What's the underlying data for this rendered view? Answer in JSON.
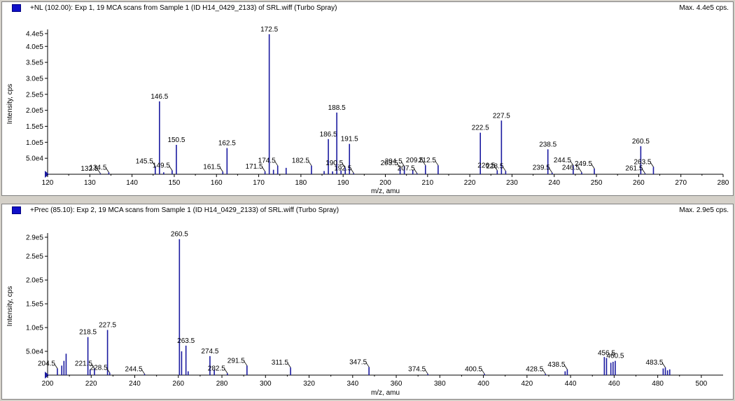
{
  "colors": {
    "series": "#1a1aa0",
    "axis": "#000000",
    "panel_bg": "#ffffff",
    "window_bg": "#d4d0c8",
    "marker": "#1010c8"
  },
  "chart_data": [
    {
      "type": "bar",
      "title": "+NL (102.00): Exp 1, 19 MCA scans from Sample 1 (ID H14_0429_2133) of SRL.wiff (Turbo Spray)",
      "max_label": "Max. 4.4e5 cps.",
      "xlabel": "m/z, amu",
      "ylabel": "Intensity, cps",
      "xlim": [
        120,
        280
      ],
      "ylim": [
        0,
        440000
      ],
      "xticks": [
        120,
        130,
        140,
        150,
        160,
        170,
        180,
        190,
        200,
        210,
        220,
        230,
        240,
        250,
        260,
        270,
        280
      ],
      "yticks": [
        50000,
        100000,
        150000,
        200000,
        250000,
        300000,
        350000,
        400000,
        440000
      ],
      "ytick_labels": [
        "5.0e4",
        "1.0e5",
        "1.5e5",
        "2.0e5",
        "2.5e5",
        "3.0e5",
        "3.5e5",
        "4.0e5",
        "4.4e5"
      ],
      "peaks": [
        {
          "x": 132.5,
          "y": 2500,
          "label": "132.5"
        },
        {
          "x": 134.5,
          "y": 6000,
          "label": "134.5"
        },
        {
          "x": 145.5,
          "y": 25000,
          "label": "145.5"
        },
        {
          "x": 146.5,
          "y": 228000,
          "label": "146.5"
        },
        {
          "x": 147.5,
          "y": 6000
        },
        {
          "x": 149.5,
          "y": 12000,
          "label": "149.5"
        },
        {
          "x": 150.5,
          "y": 92000,
          "label": "150.5"
        },
        {
          "x": 161.5,
          "y": 8000,
          "label": "161.5"
        },
        {
          "x": 162.5,
          "y": 82000,
          "label": "162.5"
        },
        {
          "x": 171.5,
          "y": 9000,
          "label": "171.5"
        },
        {
          "x": 172.5,
          "y": 438000,
          "label": "172.5"
        },
        {
          "x": 173.5,
          "y": 14000
        },
        {
          "x": 174.5,
          "y": 27000,
          "label": "174.5"
        },
        {
          "x": 176.5,
          "y": 20000
        },
        {
          "x": 182.5,
          "y": 27000,
          "label": "182.5"
        },
        {
          "x": 185.5,
          "y": 10000
        },
        {
          "x": 186.5,
          "y": 110000,
          "label": "186.5"
        },
        {
          "x": 187.5,
          "y": 9000
        },
        {
          "x": 188.5,
          "y": 193000,
          "label": "188.5"
        },
        {
          "x": 189.5,
          "y": 12000
        },
        {
          "x": 190.5,
          "y": 20000,
          "label": "190.5"
        },
        {
          "x": 191.5,
          "y": 95000,
          "label": "191.5"
        },
        {
          "x": 192.5,
          "y": 3500,
          "label": "192.5"
        },
        {
          "x": 203.5,
          "y": 20000,
          "label": "203.5"
        },
        {
          "x": 204.5,
          "y": 25000,
          "label": "204.5"
        },
        {
          "x": 206.5,
          "y": 12000
        },
        {
          "x": 207.5,
          "y": 3000,
          "label": "207.5"
        },
        {
          "x": 209.5,
          "y": 28000,
          "label": "209.5"
        },
        {
          "x": 212.5,
          "y": 28000,
          "label": "212.5"
        },
        {
          "x": 222.5,
          "y": 130000,
          "label": "222.5"
        },
        {
          "x": 226.5,
          "y": 12000,
          "label": "226.5"
        },
        {
          "x": 227.5,
          "y": 168000,
          "label": "227.5"
        },
        {
          "x": 228.5,
          "y": 10000,
          "label": "228.5"
        },
        {
          "x": 238.5,
          "y": 78000,
          "label": "238.5"
        },
        {
          "x": 239.5,
          "y": 5000,
          "label": "239.5"
        },
        {
          "x": 244.5,
          "y": 28000,
          "label": "244.5"
        },
        {
          "x": 246.5,
          "y": 6000,
          "label": "246.5"
        },
        {
          "x": 249.5,
          "y": 18000,
          "label": "249.5"
        },
        {
          "x": 260.5,
          "y": 88000,
          "label": "260.5"
        },
        {
          "x": 261.5,
          "y": 3000,
          "label": "261.5"
        },
        {
          "x": 263.5,
          "y": 23000,
          "label": "263.5"
        }
      ]
    },
    {
      "type": "bar",
      "title": "+Prec (85.10): Exp 2, 19 MCA scans from Sample 1 (ID H14_0429_2133) of SRL.wiff (Turbo Spray)",
      "max_label": "Max. 2.9e5 cps.",
      "xlabel": "m/z, amu",
      "ylabel": "Intensity, cps",
      "xlim": [
        200,
        510
      ],
      "ylim": [
        0,
        290000
      ],
      "xticks": [
        200,
        220,
        240,
        260,
        280,
        300,
        320,
        340,
        360,
        380,
        400,
        420,
        440,
        460,
        480,
        500
      ],
      "yticks": [
        50000,
        100000,
        150000,
        200000,
        250000,
        290000
      ],
      "ytick_labels": [
        "5.0e4",
        "1.0e5",
        "1.5e5",
        "2.0e5",
        "2.5e5",
        "2.9e5"
      ],
      "peaks": [
        {
          "x": 204.5,
          "y": 14000,
          "label": "204.5"
        },
        {
          "x": 206.5,
          "y": 20000
        },
        {
          "x": 207.5,
          "y": 30000
        },
        {
          "x": 208.5,
          "y": 45000
        },
        {
          "x": 218.5,
          "y": 80000,
          "label": "218.5"
        },
        {
          "x": 219.5,
          "y": 12000
        },
        {
          "x": 221.5,
          "y": 14000,
          "label": "221.5"
        },
        {
          "x": 227.5,
          "y": 95000,
          "label": "227.5"
        },
        {
          "x": 228.5,
          "y": 5000,
          "label": "228.5"
        },
        {
          "x": 244.5,
          "y": 2500,
          "label": "244.5"
        },
        {
          "x": 260.5,
          "y": 286000,
          "label": "260.5"
        },
        {
          "x": 261.5,
          "y": 50000
        },
        {
          "x": 263.5,
          "y": 62000,
          "label": "263.5"
        },
        {
          "x": 264.5,
          "y": 8000
        },
        {
          "x": 274.5,
          "y": 40000,
          "label": "274.5"
        },
        {
          "x": 276.5,
          "y": 12000
        },
        {
          "x": 282.5,
          "y": 4000,
          "label": "282.5"
        },
        {
          "x": 291.5,
          "y": 20000,
          "label": "291.5"
        },
        {
          "x": 311.5,
          "y": 16000,
          "label": "311.5"
        },
        {
          "x": 347.5,
          "y": 17000,
          "label": "347.5"
        },
        {
          "x": 374.5,
          "y": 2500,
          "label": "374.5"
        },
        {
          "x": 400.5,
          "y": 2500,
          "label": "400.5"
        },
        {
          "x": 428.5,
          "y": 2500,
          "label": "428.5"
        },
        {
          "x": 437.5,
          "y": 8000
        },
        {
          "x": 438.5,
          "y": 12000,
          "label": "438.5"
        },
        {
          "x": 455.5,
          "y": 38000
        },
        {
          "x": 456.5,
          "y": 36000,
          "label": "456.5"
        },
        {
          "x": 458.5,
          "y": 26000
        },
        {
          "x": 459.5,
          "y": 28000
        },
        {
          "x": 460.5,
          "y": 30000,
          "label": "460.5"
        },
        {
          "x": 482.5,
          "y": 14000
        },
        {
          "x": 483.5,
          "y": 16000,
          "label": "483.5"
        },
        {
          "x": 484.5,
          "y": 10000
        },
        {
          "x": 485.5,
          "y": 12000
        }
      ]
    }
  ]
}
